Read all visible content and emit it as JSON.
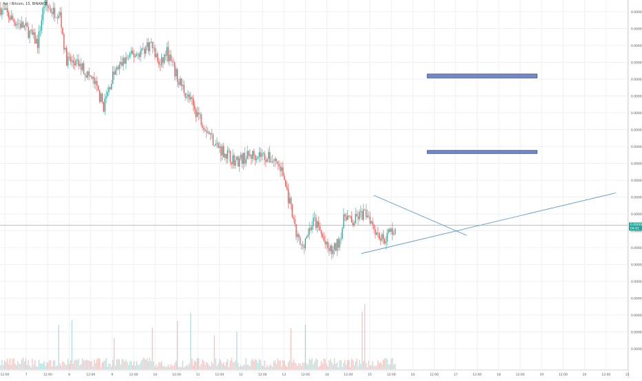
{
  "header": {
    "symbol_title": "Ast / Bitcoin, 15, BINANCE"
  },
  "colors": {
    "up": "#26a69a",
    "down": "#ef5350",
    "grid": "#eef0f3",
    "price_line": "#4db6ac",
    "price_badge": "#26a69a",
    "trend_line": "#4f8fcf",
    "zone_fill": "#7289c5",
    "zone_stroke": "#3a4f8c"
  },
  "chart_data": {
    "type": "candlestick",
    "x_ticks": [
      "12:00",
      "7",
      "12:00",
      "8",
      "12:00",
      "9",
      "12:00",
      "10",
      "12:00",
      "11",
      "12:00",
      "12",
      "12:00",
      "13",
      "12:00",
      "14",
      "12:00",
      "15",
      "12:00",
      "16",
      "12:00",
      "17",
      "12:00",
      "18",
      "12:00",
      "19",
      "12:00",
      "20",
      "12:00",
      "21"
    ],
    "y_ticks": [
      "0.0000880",
      "0.0000840",
      "0.0000820",
      "0.0000780",
      "0.0000760",
      "0.0000740",
      "0.0000720",
      "0.0000700",
      "0.0000680",
      "0.0000660",
      "0.0000640",
      "0.0000620",
      "0.0000600",
      "0.0000580",
      "0.0000560",
      "0.0000540",
      "0.0000520",
      "0.0000500",
      "0.0000480",
      "0.0000460",
      "0.0000440"
    ],
    "y_range": [
      4.26e-05,
      8.95e-05
    ],
    "current_price": "0.0000609",
    "countdown": "04:01",
    "price_path": [
      [
        0,
        8.85e-05
      ],
      [
        0.02,
        8.7e-05
      ],
      [
        0.04,
        8.6e-05
      ],
      [
        0.06,
        8.4e-05
      ],
      [
        0.07,
        8.9e-05
      ],
      [
        0.085,
        8.8e-05
      ],
      [
        0.095,
        8.8e-05
      ],
      [
        0.105,
        8.2e-05
      ],
      [
        0.13,
        8.1e-05
      ],
      [
        0.15,
        7.9e-05
      ],
      [
        0.165,
        7.6e-05
      ],
      [
        0.18,
        8e-05
      ],
      [
        0.2,
        8.2e-05
      ],
      [
        0.225,
        8.3e-05
      ],
      [
        0.24,
        8.4e-05
      ],
      [
        0.255,
        8.1e-05
      ],
      [
        0.265,
        8.3e-05
      ],
      [
        0.28,
        8e-05
      ],
      [
        0.3,
        7.7e-05
      ],
      [
        0.315,
        7.5e-05
      ],
      [
        0.33,
        7.3e-05
      ],
      [
        0.345,
        7.1e-05
      ],
      [
        0.36,
        7e-05
      ],
      [
        0.375,
        6.9e-05
      ],
      [
        0.39,
        6.95e-05
      ],
      [
        0.41,
        7e-05
      ],
      [
        0.425,
        6.95e-05
      ],
      [
        0.44,
        6.9e-05
      ],
      [
        0.45,
        6.75e-05
      ],
      [
        0.46,
        6.4e-05
      ],
      [
        0.47,
        6e-05
      ],
      [
        0.48,
        5.8e-05
      ],
      [
        0.49,
        6e-05
      ],
      [
        0.5,
        6.15e-05
      ],
      [
        0.51,
        6e-05
      ],
      [
        0.52,
        5.8e-05
      ],
      [
        0.53,
        5.75e-05
      ],
      [
        0.54,
        5.9e-05
      ],
      [
        0.55,
        6.25e-05
      ],
      [
        0.56,
        6.1e-05
      ],
      [
        0.57,
        6.2e-05
      ],
      [
        0.585,
        6.25e-05
      ],
      [
        0.6,
        6e-05
      ],
      [
        0.61,
        5.9e-05
      ],
      [
        0.62,
        6e-05
      ],
      [
        0.63,
        6.05e-05
      ]
    ],
    "drawings": {
      "resistance_zones": [
        {
          "price_top": 8.01e-05,
          "price_bottom": 7.96e-05,
          "x_start": 0.68,
          "x_end": 0.855
        },
        {
          "price_top": 7.04e-05,
          "price_bottom": 7e-05,
          "x_start": 0.68,
          "x_end": 0.855
        }
      ],
      "trend_lines": [
        {
          "from": [
            0.595,
            6.47e-05
          ],
          "to": [
            0.743,
            5.96e-05
          ]
        },
        {
          "from": [
            0.575,
            5.73e-05
          ],
          "to": [
            0.98,
            6.5e-05
          ]
        }
      ]
    }
  }
}
